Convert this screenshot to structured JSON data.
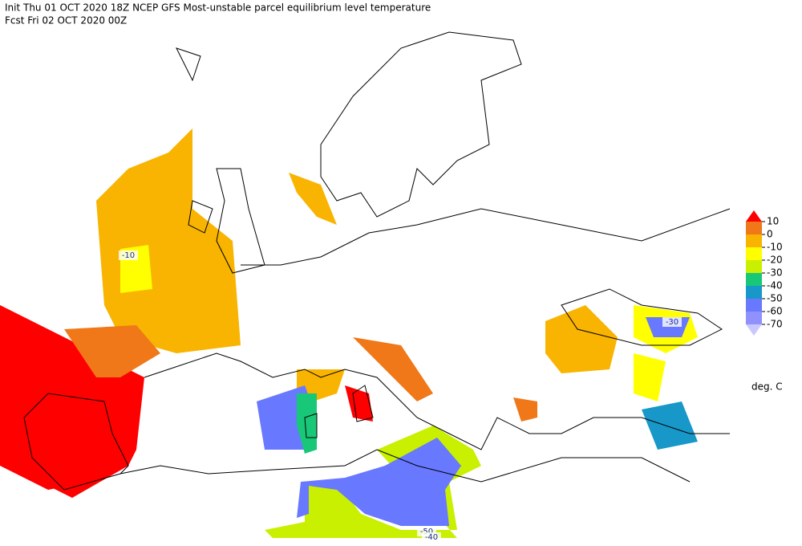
{
  "header": {
    "line1": "Init  Thu 01 OCT 2020 18Z   NCEP GFS Most-unstable parcel equilibrium level temperature",
    "line2": "Fcst Fri 02 OCT 2020 00Z"
  },
  "legend": {
    "levels": [
      10,
      0,
      -10,
      -20,
      -30,
      -40,
      -50,
      -60,
      -70
    ],
    "colors": [
      "#ff0000",
      "#f07818",
      "#f8b400",
      "#ffff00",
      "#c8f000",
      "#18c878",
      "#1898c8",
      "#6878ff",
      "#9090ff",
      "#c8c8ff"
    ],
    "unit": "deg. C"
  },
  "map": {
    "contour_labels": [
      -10,
      -30,
      -50,
      -40
    ]
  }
}
